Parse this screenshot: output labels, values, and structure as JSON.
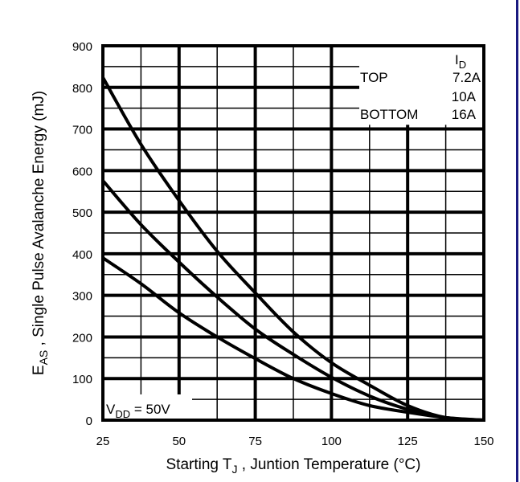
{
  "chart_data": {
    "type": "line",
    "title": "",
    "xlabel": {
      "main": "Starting T",
      "sub": "J",
      "rest": " , Juntion Temperature (°C)"
    },
    "ylabel": {
      "main": "E",
      "sub": "AS",
      "rest": " ,   Single Pulse Avalanche Energy (mJ)"
    },
    "xlim": [
      25,
      150
    ],
    "ylim": [
      0,
      900
    ],
    "xticks": [
      25,
      50,
      75,
      100,
      125,
      150
    ],
    "yticks": [
      0,
      100,
      200,
      300,
      400,
      500,
      600,
      700,
      800,
      900
    ],
    "grid": true,
    "legend": {
      "placement": "top-right",
      "header_main": "I",
      "header_sub": "D",
      "rows": [
        {
          "position": "TOP",
          "value": "7.2A"
        },
        {
          "position": "",
          "value": "10A"
        },
        {
          "position": "BOTTOM",
          "value": "16A"
        }
      ]
    },
    "annotation": {
      "main": "V",
      "sub": "DD",
      "rest": " = 50V"
    },
    "x": [
      25,
      37.5,
      50,
      62.5,
      75,
      87.5,
      100,
      112.5,
      125,
      137.5,
      150
    ],
    "series": [
      {
        "name": "7.2A",
        "values": [
          824,
          663,
          528,
          406,
          306,
          212,
          138,
          84,
          35,
          6,
          0
        ]
      },
      {
        "name": "10A",
        "values": [
          576,
          470,
          380,
          296,
          219,
          158,
          103,
          58,
          26,
          6,
          0
        ]
      },
      {
        "name": "16A",
        "values": [
          390,
          328,
          258,
          200,
          148,
          100,
          64,
          35,
          19,
          6,
          0
        ]
      }
    ],
    "colors": {
      "line": "#000000",
      "edge": "#1a1a80"
    }
  }
}
